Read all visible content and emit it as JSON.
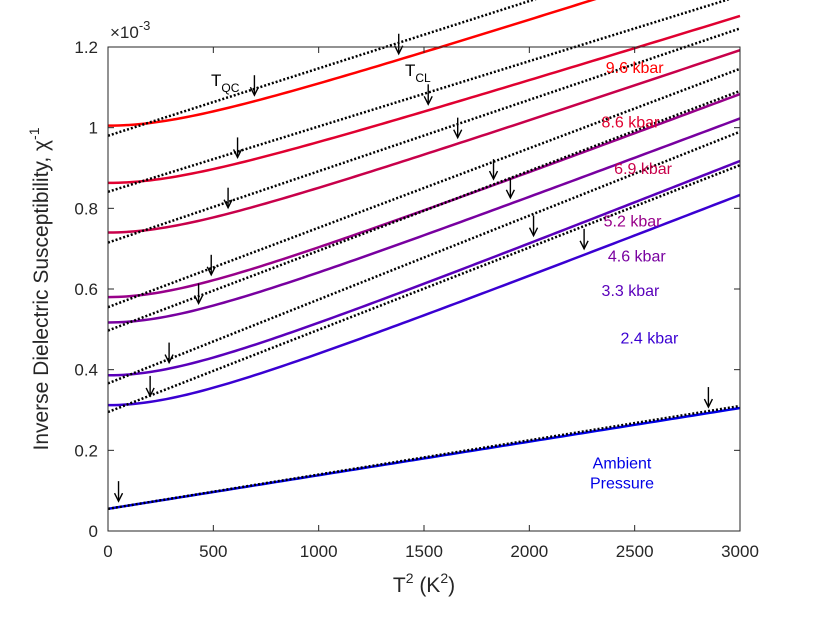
{
  "chart_data": {
    "type": "line",
    "xlabel": {
      "base": "T",
      "sup": "2",
      "unit_pre": " (K",
      "unit_sup": "2",
      "unit_post": ")"
    },
    "ylabel": {
      "text": "Inverse Dielectric Susceptibility, χ",
      "sup": "-1"
    },
    "exponent_label": {
      "prefix": "×10",
      "sup": "-3"
    },
    "xlim": [
      0,
      3000
    ],
    "ylim": [
      0,
      1.2
    ],
    "x_ticks": [
      0,
      500,
      1000,
      1500,
      2000,
      2500,
      3000
    ],
    "x_tick_labels": [
      "0",
      "500",
      "1000",
      "1500",
      "2000",
      "2500",
      "3000"
    ],
    "y_ticks": [
      0,
      0.2,
      0.4,
      0.6,
      0.8,
      1.0,
      1.2
    ],
    "y_tick_labels": [
      "0",
      "0.2",
      "0.4",
      "0.6",
      "0.8",
      "1",
      "1.2"
    ],
    "annotations": [
      {
        "id": "tqc",
        "base": "T",
        "sub": "QC"
      },
      {
        "id": "tcl",
        "base": "T",
        "sub": "CL"
      }
    ],
    "series": [
      {
        "name": "9.6 kbar",
        "color": "#ff0000",
        "a": 1.005,
        "b": 0.000167,
        "T0": 22,
        "fit_a": 0.98,
        "fit_b": 0.000167,
        "arrows": [
          695,
          1380
        ]
      },
      {
        "name": "8.6 kbar",
        "color": "#e00030",
        "a": 0.863,
        "b": 0.000162,
        "T0": 22,
        "fit_a": 0.841,
        "fit_b": 0.000162,
        "arrows": [
          615,
          1520
        ]
      },
      {
        "name": "6.9 kbar",
        "color": "#c8004a",
        "a": 0.74,
        "b": 0.000177,
        "T0": 22,
        "fit_a": 0.715,
        "fit_b": 0.000177,
        "arrows": [
          570,
          1660
        ]
      },
      {
        "name": "5.2 kbar",
        "color": "#98008a",
        "a": 0.58,
        "b": 0.000197,
        "T0": 22,
        "fit_a": 0.555,
        "fit_b": 0.000197,
        "arrows": [
          490,
          1830
        ]
      },
      {
        "name": "4.6 kbar",
        "color": "#7800a0",
        "a": 0.517,
        "b": 0.000198,
        "T0": 22,
        "fit_a": 0.497,
        "fit_b": 0.000198,
        "arrows": [
          430,
          1910
        ]
      },
      {
        "name": "3.3 kbar",
        "color": "#5a00bb",
        "a": 0.386,
        "b": 0.000208,
        "T0": 22,
        "fit_a": 0.366,
        "fit_b": 0.000208,
        "arrows": [
          290,
          2020
        ]
      },
      {
        "name": "2.4 kbar",
        "color": "#3a00d2",
        "a": 0.312,
        "b": 0.000204,
        "T0": 22,
        "fit_a": 0.295,
        "fit_b": 0.000204,
        "arrows": [
          200,
          2260
        ]
      },
      {
        "name": "Ambient Pressure",
        "name_lines": [
          "Ambient",
          "Pressure"
        ],
        "color": "#0000e6",
        "a": 0.055,
        "b": 8.33e-05,
        "T0": 0,
        "fit_a": 0.055,
        "fit_b": 8.5e-05,
        "arrows": [
          50,
          2850
        ]
      }
    ]
  }
}
